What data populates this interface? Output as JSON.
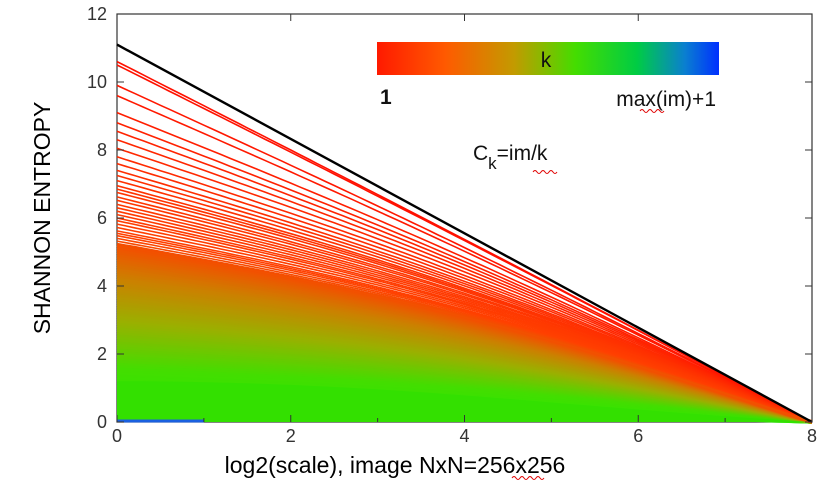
{
  "chart_data": {
    "type": "line",
    "title": "",
    "xlabel": "log2(scale), image NxN=256x256",
    "ylabel": "SHANNON ENTROPY",
    "xlim": [
      0,
      8
    ],
    "ylim": [
      0,
      12
    ],
    "x_ticks": [
      "0",
      "2",
      "4",
      "6",
      "8"
    ],
    "y_ticks": [
      "0",
      "2",
      "4",
      "6",
      "8",
      "10",
      "12"
    ],
    "grid": false,
    "reference_line": {
      "x": [
        0,
        8
      ],
      "y": [
        11.1,
        0
      ],
      "color": "#000000"
    },
    "red_curve_starts": [
      10.6,
      10.5,
      9.9,
      9.6,
      9.1,
      8.8,
      8.55,
      8.3,
      8.05,
      7.8,
      7.6,
      7.4,
      7.25,
      7.1,
      6.95,
      6.85,
      6.75,
      6.62,
      6.52,
      6.4,
      6.3,
      6.2,
      6.1,
      6.0,
      5.92,
      5.82,
      5.72,
      5.62,
      5.55,
      5.48,
      5.4,
      5.32,
      5.25,
      5.18
    ],
    "band_curve_range": {
      "start_min": 0.4,
      "start_max": 5.2,
      "count": 70
    },
    "curve_end": {
      "x": 8,
      "y": 0
    },
    "colorbar": {
      "label": "k",
      "min_label": "1",
      "max_label": "max(im)+1",
      "colors": [
        "#ff1a00",
        "#ff5a00",
        "#c39a00",
        "#44dd00",
        "#00cc44",
        "#0a7fd0",
        "#0030ff"
      ]
    },
    "formula": {
      "base": "C",
      "subscript": "k",
      "rhs": "=im/k"
    }
  }
}
